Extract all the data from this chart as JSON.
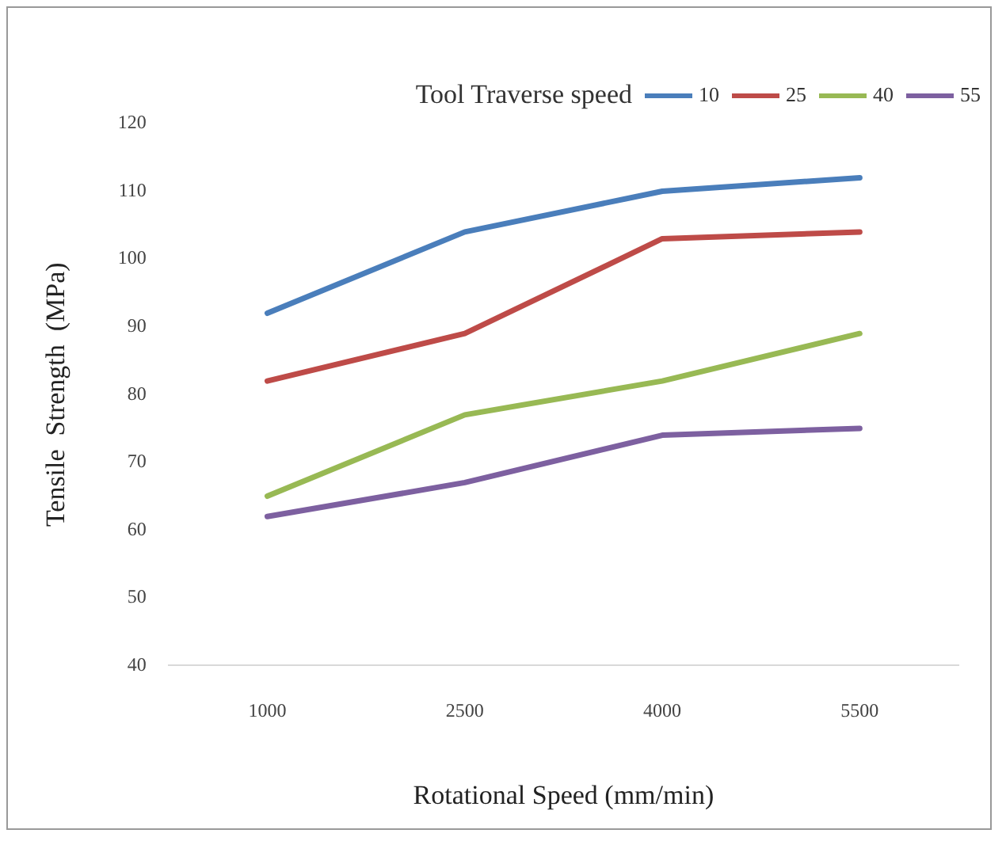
{
  "chart_data": {
    "type": "line",
    "xlabel": "Rotational Speed (mm/min)",
    "ylabel": "Tensile  Strength  (MPa)",
    "legend_title": "Tool Traverse speed",
    "legend": "top right",
    "grid": false,
    "marker": "none",
    "line_style": "solid",
    "categories": [
      "1000",
      "2500",
      "4000",
      "5500"
    ],
    "ylim": [
      40,
      120
    ],
    "yticks": [
      40,
      50,
      60,
      70,
      80,
      90,
      100,
      110,
      120
    ],
    "series": [
      {
        "name": "10",
        "color": "#4a7ebb",
        "values": [
          92,
          104,
          110,
          112
        ]
      },
      {
        "name": "25",
        "color": "#be4b48",
        "values": [
          82,
          89,
          103,
          104
        ]
      },
      {
        "name": "40",
        "color": "#98b954",
        "values": [
          65,
          77,
          82,
          89
        ]
      },
      {
        "name": "55",
        "color": "#7d60a0",
        "values": [
          62,
          67,
          74,
          75
        ]
      }
    ]
  }
}
